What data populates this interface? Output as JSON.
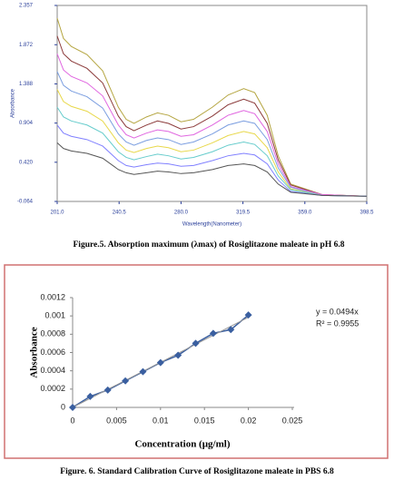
{
  "chart_data": [
    {
      "type": "line",
      "caption": "Figure.5. Absorption maximum (λmax) of Rosiglitazone maleate in pH 6.8",
      "x_label": "Wavelength(Nanometer)",
      "y_label": "Absorbance",
      "x": [
        201,
        205,
        210,
        220,
        230,
        240,
        245,
        250,
        258,
        265,
        272,
        280,
        288,
        300,
        310,
        320,
        327,
        335,
        342,
        350,
        370,
        398.5
      ],
      "xlim": [
        201,
        398.5
      ],
      "xticks": [
        {
          "value": 201,
          "label": "201.0"
        },
        240.5,
        {
          "value": 280,
          "label": "280.0"
        },
        319.5,
        {
          "value": 359,
          "label": "359.0"
        },
        398.5
      ],
      "ylim": [
        -0.064,
        2.357
      ],
      "yticks": [
        -0.064,
        {
          "value": 0.42,
          "label": "0.420"
        },
        0.904,
        1.388,
        1.872,
        2.357
      ],
      "series": [
        {
          "color": "#b5a642",
          "values": [
            2.2,
            1.95,
            1.85,
            1.75,
            1.55,
            1.1,
            0.95,
            0.9,
            0.98,
            1.03,
            1.0,
            0.92,
            0.95,
            1.1,
            1.25,
            1.33,
            1.28,
            1.0,
            0.5,
            0.15,
            0.02,
            0.0
          ]
        },
        {
          "color": "#8b3a3a",
          "values": [
            1.98,
            1.76,
            1.67,
            1.58,
            1.4,
            0.99,
            0.86,
            0.81,
            0.88,
            0.93,
            0.9,
            0.83,
            0.86,
            0.99,
            1.13,
            1.2,
            1.15,
            0.9,
            0.45,
            0.14,
            0.02,
            0.0
          ]
        },
        {
          "color": "#e066e0",
          "values": [
            1.76,
            1.56,
            1.48,
            1.4,
            1.24,
            0.88,
            0.76,
            0.72,
            0.78,
            0.82,
            0.8,
            0.74,
            0.76,
            0.88,
            1.0,
            1.06,
            1.02,
            0.8,
            0.4,
            0.12,
            0.02,
            0.0
          ]
        },
        {
          "color": "#7b9ee0",
          "values": [
            1.54,
            1.37,
            1.3,
            1.23,
            1.09,
            0.77,
            0.67,
            0.63,
            0.69,
            0.72,
            0.7,
            0.64,
            0.67,
            0.77,
            0.88,
            0.93,
            0.9,
            0.7,
            0.35,
            0.11,
            0.01,
            0.0
          ]
        },
        {
          "color": "#e8d84a",
          "values": [
            1.32,
            1.17,
            1.11,
            1.05,
            0.93,
            0.66,
            0.57,
            0.54,
            0.59,
            0.62,
            0.6,
            0.55,
            0.57,
            0.66,
            0.75,
            0.8,
            0.77,
            0.6,
            0.3,
            0.09,
            0.01,
            0.0
          ]
        },
        {
          "color": "#66cccc",
          "values": [
            1.1,
            0.98,
            0.93,
            0.88,
            0.78,
            0.55,
            0.48,
            0.45,
            0.49,
            0.52,
            0.5,
            0.46,
            0.48,
            0.55,
            0.63,
            0.67,
            0.64,
            0.5,
            0.25,
            0.08,
            0.01,
            0.0
          ]
        },
        {
          "color": "#8080ff",
          "values": [
            0.88,
            0.78,
            0.74,
            0.7,
            0.62,
            0.44,
            0.38,
            0.36,
            0.39,
            0.41,
            0.4,
            0.37,
            0.38,
            0.44,
            0.5,
            0.53,
            0.51,
            0.4,
            0.2,
            0.06,
            0.01,
            0.0
          ]
        },
        {
          "color": "#555555",
          "values": [
            0.66,
            0.59,
            0.56,
            0.53,
            0.47,
            0.33,
            0.29,
            0.27,
            0.29,
            0.31,
            0.3,
            0.28,
            0.29,
            0.33,
            0.38,
            0.4,
            0.38,
            0.3,
            0.15,
            0.05,
            0.01,
            0.0
          ]
        }
      ]
    },
    {
      "type": "line",
      "markers": true,
      "trendline": true,
      "caption": "Figure. 6. Standard Calibration Curve of Rosiglitazone maleate in PBS 6.8",
      "x_label": "Concentration (µg/ml)",
      "y_label": "Absorbance",
      "annotations": [
        "y = 0.0494x",
        "R² = 0.9955"
      ],
      "x": [
        0,
        0.002,
        0.004,
        0.006,
        0.008,
        0.01,
        0.012,
        0.014,
        0.016,
        0.018,
        0.02
      ],
      "xlim": [
        0,
        0.025
      ],
      "xticks": [
        0,
        0.005,
        0.01,
        0.015,
        0.02,
        0.025
      ],
      "ylim": [
        0,
        0.0012
      ],
      "yticks": [
        0,
        0.0002,
        0.0004,
        0.0006,
        0.0008,
        0.001,
        0.0012
      ],
      "series": [
        {
          "color": "#3a5fa0",
          "values": [
            0,
            0.00012,
            0.00019,
            0.00029,
            0.00039,
            0.00049,
            0.00057,
            0.0007,
            0.00081,
            0.00085,
            0.00101
          ]
        }
      ]
    }
  ]
}
